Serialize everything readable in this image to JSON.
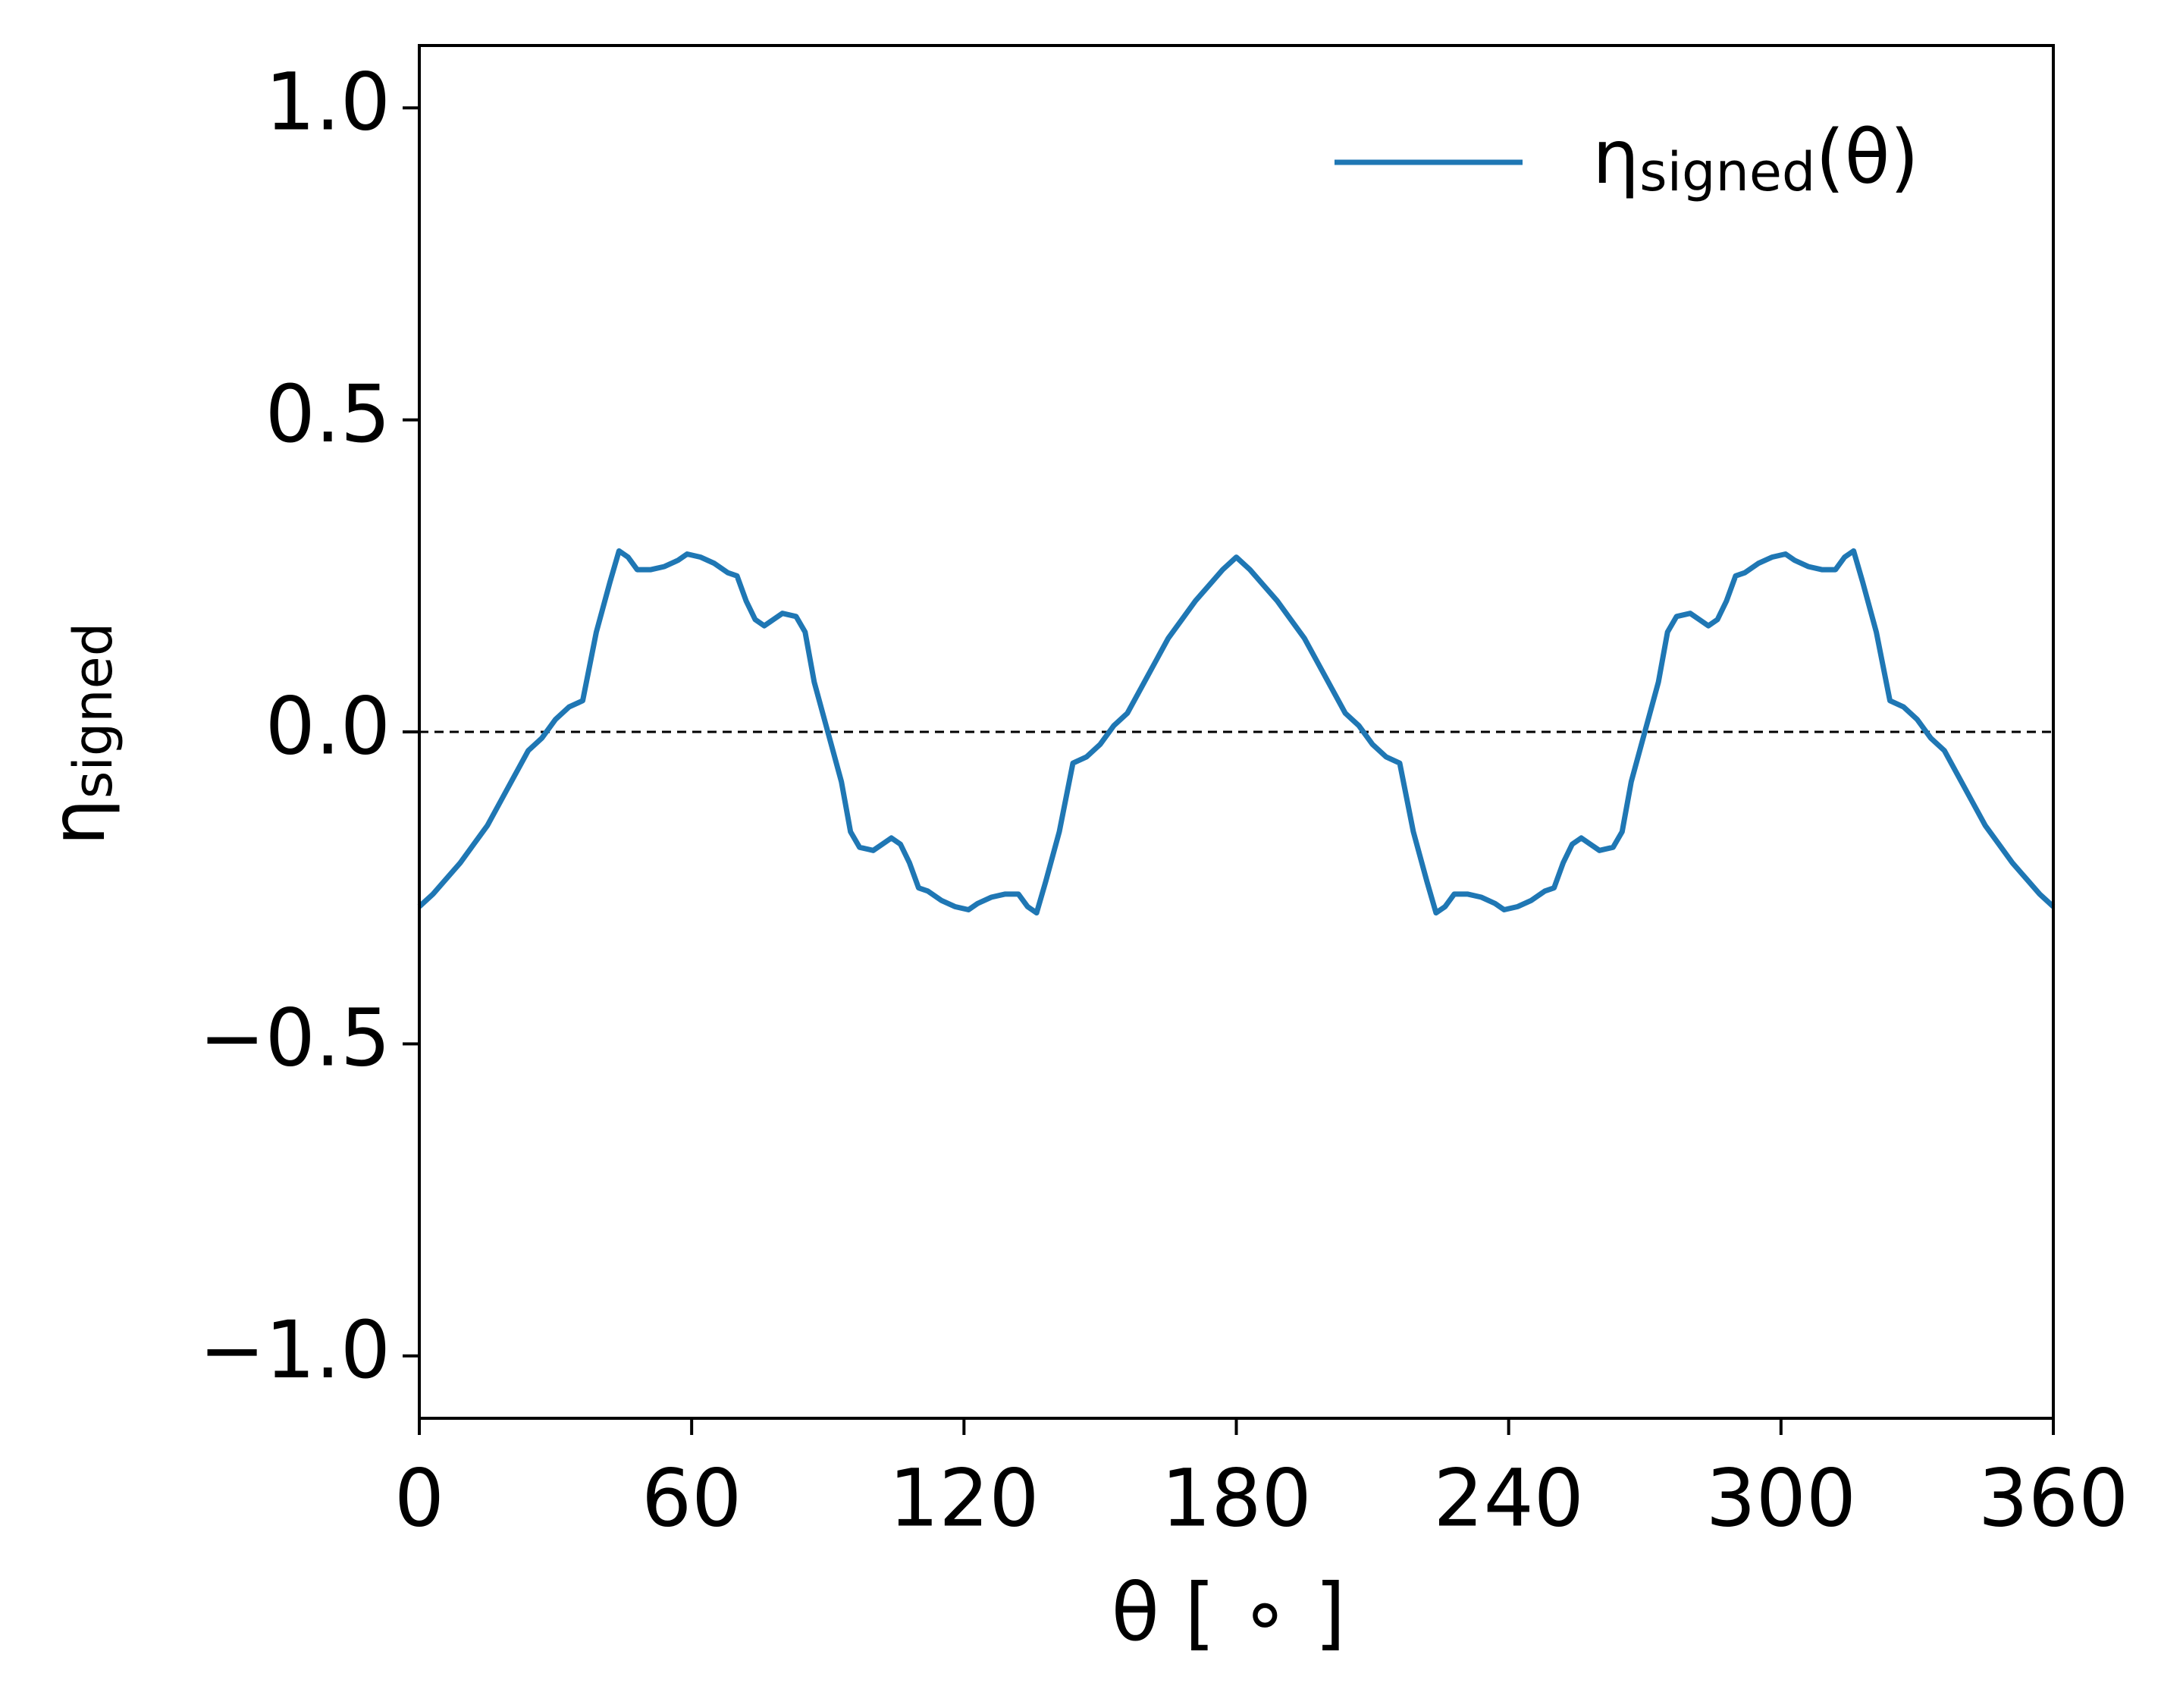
{
  "chart_data": {
    "type": "line",
    "xlabel": "θ [ ∘ ]",
    "ylabel": {
      "base": "η",
      "sub": "signed"
    },
    "xlim": [
      0,
      360
    ],
    "ylim": [
      -1.1,
      1.1
    ],
    "xticks": [
      0,
      60,
      120,
      180,
      240,
      300,
      360
    ],
    "yticks": [
      {
        "value": -1.0,
        "label": "−1.0"
      },
      {
        "value": -0.5,
        "label": "−0.5"
      },
      {
        "value": 0.0,
        "label": "0.0"
      },
      {
        "value": 0.5,
        "label": "0.5"
      },
      {
        "value": 1.0,
        "label": "1.0"
      }
    ],
    "hline": 0,
    "legend": "upper right",
    "x": [
      0,
      3,
      6,
      9,
      12,
      15,
      18,
      21,
      24,
      27,
      30,
      33,
      36,
      39,
      42,
      44,
      46,
      48,
      51,
      54,
      57,
      59,
      62,
      65,
      68,
      70,
      72,
      74,
      76,
      78,
      80,
      83,
      85,
      87,
      90,
      93,
      95,
      97,
      100,
      102,
      104,
      106,
      108,
      110,
      112,
      115,
      118,
      121,
      123,
      126,
      129,
      132,
      134,
      136,
      138,
      141,
      144,
      147,
      150,
      153,
      156,
      159,
      162,
      165,
      168,
      171,
      174,
      177,
      180,
      183,
      186,
      189,
      192,
      195,
      198,
      201,
      204,
      207,
      210,
      213,
      216,
      219,
      222,
      224,
      226,
      228,
      231,
      234,
      237,
      239,
      242,
      245,
      248,
      250,
      252,
      254,
      256,
      258,
      260,
      263,
      265,
      267,
      270,
      273,
      275,
      277,
      280,
      282,
      284,
      286,
      288,
      290,
      292,
      295,
      298,
      301,
      303,
      306,
      309,
      312,
      314,
      316,
      318,
      321,
      324,
      327,
      330,
      333,
      336,
      339,
      342,
      345,
      348,
      351,
      354,
      357,
      360
    ],
    "series": [
      {
        "name": {
          "base": "η",
          "sub": "signed",
          "tail": "(θ)"
        },
        "color": "#1f77b4",
        "values": [
          -0.28,
          -0.26,
          -0.235,
          -0.21,
          -0.18,
          -0.15,
          -0.11,
          -0.07,
          -0.03,
          -0.01,
          0.02,
          0.04,
          0.05,
          0.16,
          0.24,
          0.29,
          0.28,
          0.26,
          0.26,
          0.265,
          0.275,
          0.285,
          0.28,
          0.27,
          0.255,
          0.25,
          0.21,
          0.18,
          0.17,
          0.18,
          0.19,
          0.185,
          0.16,
          0.08,
          0.0,
          -0.08,
          -0.16,
          -0.185,
          -0.19,
          -0.18,
          -0.17,
          -0.18,
          -0.21,
          -0.25,
          -0.255,
          -0.27,
          -0.28,
          -0.285,
          -0.275,
          -0.265,
          -0.26,
          -0.26,
          -0.28,
          -0.29,
          -0.24,
          -0.16,
          -0.05,
          -0.04,
          -0.02,
          0.01,
          0.03,
          0.07,
          0.11,
          0.15,
          0.18,
          0.21,
          0.235,
          0.26,
          0.28,
          0.26,
          0.235,
          0.21,
          0.18,
          0.15,
          0.11,
          0.07,
          0.03,
          0.01,
          -0.02,
          -0.04,
          -0.05,
          -0.16,
          -0.24,
          -0.29,
          -0.28,
          -0.26,
          -0.26,
          -0.265,
          -0.275,
          -0.285,
          -0.28,
          -0.27,
          -0.255,
          -0.25,
          -0.21,
          -0.18,
          -0.17,
          -0.18,
          -0.19,
          -0.185,
          -0.16,
          -0.08,
          0.0,
          0.08,
          0.16,
          0.185,
          0.19,
          0.18,
          0.17,
          0.18,
          0.21,
          0.25,
          0.255,
          0.27,
          0.28,
          0.285,
          0.275,
          0.265,
          0.26,
          0.26,
          0.28,
          0.29,
          0.24,
          0.16,
          0.05,
          0.04,
          0.02,
          -0.01,
          -0.03,
          -0.07,
          -0.11,
          -0.15,
          -0.18,
          -0.21,
          -0.235,
          -0.26,
          -0.28
        ]
      }
    ]
  }
}
